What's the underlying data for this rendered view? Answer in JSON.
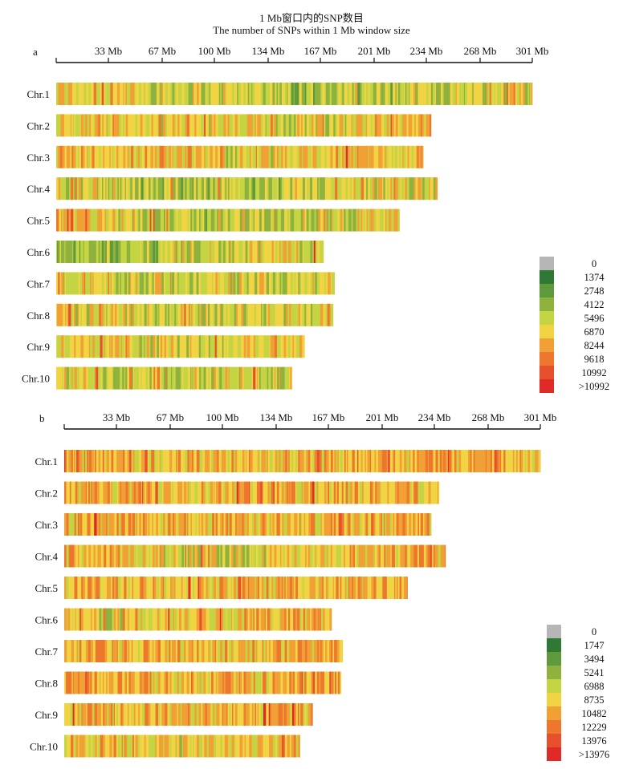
{
  "figure": {
    "title_cn": "1 Mb窗口内的SNP数目",
    "title_en": "The number of SNPs within 1 Mb window size"
  },
  "colors": {
    "gray": "#b6b6b6",
    "dark_green": "#2e7a34",
    "green": "#5e9a3c",
    "olive_green": "#8fb23e",
    "yellow_green": "#c4d442",
    "yellow": "#f1d443",
    "light_orange": "#f1a035",
    "orange": "#ec772d",
    "red_orange": "#e6502c",
    "red": "#e02a27"
  },
  "chart_data": [
    {
      "type": "heatmap",
      "panel": "a",
      "x_ticks": [
        "33 Mb",
        "67 Mb",
        "100 Mb",
        "134 Mb",
        "167 Mb",
        "201 Mb",
        "234 Mb",
        "268 Mb",
        "301 Mb"
      ],
      "tick_values": [
        33,
        67,
        100,
        134,
        167,
        201,
        234,
        268,
        301
      ],
      "xlim": [
        0,
        301
      ],
      "chromosomes": [
        {
          "name": "Chr.1",
          "length": 301,
          "profile": [
            [
              0,
              0.5
            ],
            [
              0.45,
              0.4
            ],
            [
              0.55,
              0.32
            ],
            [
              1,
              0.48
            ]
          ]
        },
        {
          "name": "Chr.2",
          "length": 237,
          "profile": [
            [
              0,
              0.52
            ],
            [
              0.5,
              0.46
            ],
            [
              1,
              0.52
            ]
          ]
        },
        {
          "name": "Chr.3",
          "length": 232,
          "profile": [
            [
              0,
              0.56
            ],
            [
              0.5,
              0.48
            ],
            [
              1,
              0.54
            ]
          ]
        },
        {
          "name": "Chr.4",
          "length": 241,
          "profile": [
            [
              0,
              0.42
            ],
            [
              0.5,
              0.34
            ],
            [
              1,
              0.48
            ]
          ]
        },
        {
          "name": "Chr.5",
          "length": 217,
          "profile": [
            [
              0,
              0.5
            ],
            [
              0.45,
              0.36
            ],
            [
              1,
              0.48
            ]
          ]
        },
        {
          "name": "Chr.6",
          "length": 169,
          "profile": [
            [
              0,
              0.3
            ],
            [
              0.3,
              0.36
            ],
            [
              1,
              0.5
            ]
          ]
        },
        {
          "name": "Chr.7",
          "length": 176,
          "profile": [
            [
              0,
              0.48
            ],
            [
              0.5,
              0.4
            ],
            [
              1,
              0.48
            ]
          ]
        },
        {
          "name": "Chr.8",
          "length": 175,
          "profile": [
            [
              0,
              0.48
            ],
            [
              0.5,
              0.42
            ],
            [
              1,
              0.5
            ]
          ]
        },
        {
          "name": "Chr.9",
          "length": 157,
          "profile": [
            [
              0,
              0.5
            ],
            [
              0.5,
              0.44
            ],
            [
              1,
              0.52
            ]
          ]
        },
        {
          "name": "Chr.10",
          "length": 149,
          "profile": [
            [
              0,
              0.42
            ],
            [
              0.5,
              0.38
            ],
            [
              1,
              0.46
            ]
          ]
        }
      ],
      "legend": {
        "labels": [
          "0",
          "1374",
          "2748",
          "4122",
          "5496",
          "6870",
          "8244",
          "9618",
          "10992",
          ">10992"
        ],
        "colors": [
          "#b6b6b6",
          "#2e7a34",
          "#5e9a3c",
          "#8fb23e",
          "#c4d442",
          "#f1d443",
          "#f1a035",
          "#ec772d",
          "#e6502c",
          "#e02a27"
        ]
      }
    },
    {
      "type": "heatmap",
      "panel": "b",
      "x_ticks": [
        "33 Mb",
        "67 Mb",
        "100 Mb",
        "134 Mb",
        "167 Mb",
        "201 Mb",
        "234 Mb",
        "268 Mb",
        "301 Mb"
      ],
      "tick_values": [
        33,
        67,
        100,
        134,
        167,
        201,
        234,
        268,
        301
      ],
      "xlim": [
        0,
        301
      ],
      "chromosomes": [
        {
          "name": "Chr.1",
          "length": 301,
          "profile": [
            [
              0,
              0.58
            ],
            [
              0.45,
              0.5
            ],
            [
              0.6,
              0.62
            ],
            [
              1,
              0.58
            ]
          ]
        },
        {
          "name": "Chr.2",
          "length": 237,
          "profile": [
            [
              0,
              0.56
            ],
            [
              0.5,
              0.58
            ],
            [
              1,
              0.56
            ]
          ]
        },
        {
          "name": "Chr.3",
          "length": 232,
          "profile": [
            [
              0,
              0.58
            ],
            [
              0.6,
              0.52
            ],
            [
              1,
              0.58
            ]
          ]
        },
        {
          "name": "Chr.4",
          "length": 241,
          "profile": [
            [
              0,
              0.56
            ],
            [
              0.4,
              0.44
            ],
            [
              1,
              0.58
            ]
          ]
        },
        {
          "name": "Chr.5",
          "length": 217,
          "profile": [
            [
              0,
              0.6
            ],
            [
              0.5,
              0.52
            ],
            [
              1,
              0.62
            ]
          ]
        },
        {
          "name": "Chr.6",
          "length": 169,
          "profile": [
            [
              0,
              0.46
            ],
            [
              0.4,
              0.5
            ],
            [
              1,
              0.6
            ]
          ]
        },
        {
          "name": "Chr.7",
          "length": 176,
          "profile": [
            [
              0,
              0.58
            ],
            [
              0.5,
              0.54
            ],
            [
              1,
              0.58
            ]
          ]
        },
        {
          "name": "Chr.8",
          "length": 175,
          "profile": [
            [
              0,
              0.6
            ],
            [
              0.5,
              0.56
            ],
            [
              1,
              0.6
            ]
          ]
        },
        {
          "name": "Chr.9",
          "length": 157,
          "profile": [
            [
              0,
              0.58
            ],
            [
              0.5,
              0.54
            ],
            [
              1,
              0.6
            ]
          ]
        },
        {
          "name": "Chr.10",
          "length": 149,
          "profile": [
            [
              0,
              0.54
            ],
            [
              0.5,
              0.5
            ],
            [
              1,
              0.56
            ]
          ]
        }
      ],
      "legend": {
        "labels": [
          "0",
          "1747",
          "3494",
          "5241",
          "6988",
          "8735",
          "10482",
          "12229",
          "13976",
          ">13976"
        ],
        "colors": [
          "#b6b6b6",
          "#2e7a34",
          "#5e9a3c",
          "#8fb23e",
          "#c4d442",
          "#f1d443",
          "#f1a035",
          "#ec772d",
          "#e6502c",
          "#e02a27"
        ]
      }
    }
  ]
}
